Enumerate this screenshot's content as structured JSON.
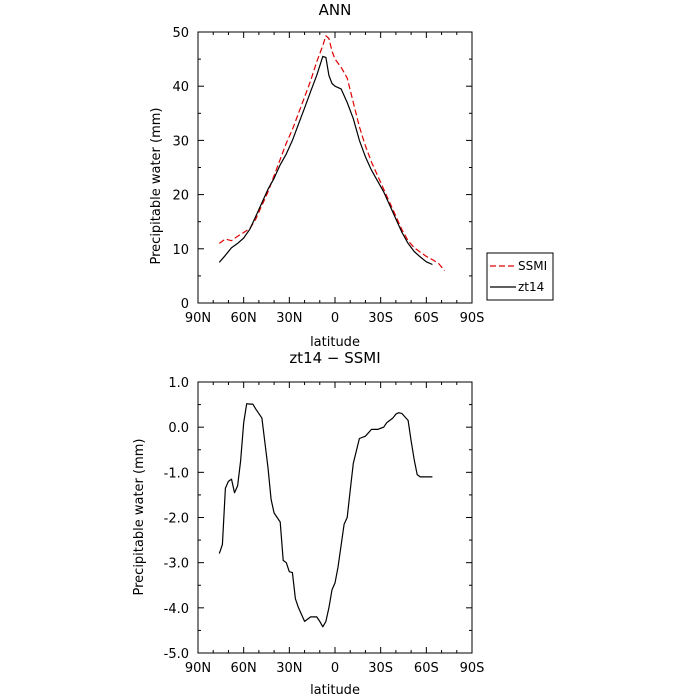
{
  "chart_data": [
    {
      "type": "line",
      "title": "ANN",
      "xlabel": "latitude",
      "ylabel": "Precipitable water (mm)",
      "xlim": [
        90,
        -90
      ],
      "ylim": [
        0,
        50
      ],
      "x_ticks": [
        90,
        60,
        30,
        0,
        -30,
        -60,
        -90
      ],
      "x_tick_labels": [
        "90N",
        "60N",
        "30N",
        "0",
        "30S",
        "60S",
        "90S"
      ],
      "y_ticks": [
        0,
        10,
        20,
        30,
        40,
        50
      ],
      "y_tick_labels": [
        "0",
        "10",
        "20",
        "30",
        "40",
        "50"
      ],
      "grid": false,
      "legend_position": "right",
      "series": [
        {
          "name": "SSMI",
          "color": "#e00000",
          "dash": "dashed",
          "x": [
            76,
            72,
            68,
            64,
            60,
            56,
            52,
            48,
            44,
            40,
            36,
            32,
            28,
            24,
            20,
            16,
            12,
            8,
            6,
            4,
            2,
            0,
            -4,
            -8,
            -12,
            -16,
            -20,
            -24,
            -28,
            -32,
            -36,
            -40,
            -44,
            -48,
            -52,
            -56,
            -60,
            -64,
            -68,
            -72
          ],
          "values": [
            11.0,
            11.8,
            11.5,
            12.3,
            13.0,
            13.7,
            15.5,
            18.0,
            20.5,
            23.5,
            26.5,
            29.5,
            32.0,
            35.0,
            38.0,
            41.0,
            44.5,
            47.5,
            49.3,
            48.8,
            46.5,
            45.0,
            43.5,
            41.5,
            37.0,
            32.5,
            29.0,
            26.0,
            23.5,
            21.0,
            18.5,
            16.0,
            13.5,
            11.5,
            10.2,
            9.4,
            8.6,
            8.0,
            7.3,
            6.0
          ]
        },
        {
          "name": "zt14",
          "color": "#000000",
          "dash": "solid",
          "x": [
            76,
            72,
            68,
            64,
            60,
            56,
            52,
            48,
            44,
            40,
            36,
            32,
            28,
            24,
            20,
            16,
            12,
            8,
            6,
            4,
            2,
            0,
            -4,
            -8,
            -12,
            -16,
            -20,
            -24,
            -28,
            -32,
            -36,
            -40,
            -44,
            -48,
            -52,
            -56,
            -60,
            -64
          ],
          "values": [
            7.5,
            8.8,
            10.2,
            11.0,
            12.0,
            13.6,
            16.0,
            18.5,
            21.0,
            23.0,
            25.5,
            27.5,
            30.0,
            33.0,
            36.0,
            39.0,
            42.0,
            45.5,
            45.3,
            42.0,
            40.5,
            40.0,
            39.5,
            37.0,
            34.0,
            30.0,
            27.0,
            24.5,
            22.5,
            20.5,
            18.0,
            15.5,
            13.0,
            11.0,
            9.5,
            8.5,
            7.6,
            7.1
          ]
        }
      ]
    },
    {
      "type": "line",
      "title": "zt14 − SSMI",
      "xlabel": "latitude",
      "ylabel": "Precipitable water (mm)",
      "xlim": [
        90,
        -90
      ],
      "ylim": [
        -5.0,
        1.0
      ],
      "x_ticks": [
        90,
        60,
        30,
        0,
        -30,
        -60,
        -90
      ],
      "x_tick_labels": [
        "90N",
        "60N",
        "30N",
        "0",
        "30S",
        "60S",
        "90S"
      ],
      "y_ticks": [
        1.0,
        0.0,
        -1.0,
        -2.0,
        -3.0,
        -4.0,
        -5.0
      ],
      "y_tick_labels": [
        "1.0",
        "0.0",
        "-1.0",
        "-2.0",
        "-3.0",
        "-4.0",
        "-5.0"
      ],
      "grid": false,
      "series": [
        {
          "color": "#000000",
          "dash": "solid",
          "x": [
            76,
            74,
            72,
            70,
            68,
            66,
            64,
            62,
            60,
            58,
            56,
            54,
            52,
            48,
            44,
            42,
            40,
            36,
            34,
            32,
            30,
            28,
            26,
            24,
            20,
            16,
            12,
            10,
            8,
            6,
            4,
            2,
            0,
            -2,
            -6,
            -8,
            -10,
            -12,
            -16,
            -20,
            -24,
            -28,
            -32,
            -34,
            -38,
            -40,
            -42,
            -44,
            -48,
            -50,
            -52,
            -54,
            -56,
            -58,
            -60,
            -62,
            -64
          ],
          "values": [
            -2.8,
            -2.6,
            -1.35,
            -1.2,
            -1.15,
            -1.45,
            -1.3,
            -0.75,
            0.1,
            0.52,
            0.51,
            0.51,
            0.4,
            0.2,
            -0.9,
            -1.6,
            -1.9,
            -2.1,
            -2.95,
            -3.0,
            -3.2,
            -3.22,
            -3.8,
            -4.0,
            -4.3,
            -4.2,
            -4.2,
            -4.3,
            -4.42,
            -4.3,
            -4.0,
            -3.6,
            -3.45,
            -3.1,
            -2.15,
            -2.0,
            -1.4,
            -0.8,
            -0.25,
            -0.2,
            -0.05,
            -0.05,
            0.0,
            0.1,
            0.2,
            0.29,
            0.32,
            0.3,
            0.15,
            -0.3,
            -0.72,
            -1.05,
            -1.1,
            -1.1,
            -1.1,
            -1.1,
            -1.1
          ]
        }
      ]
    }
  ]
}
